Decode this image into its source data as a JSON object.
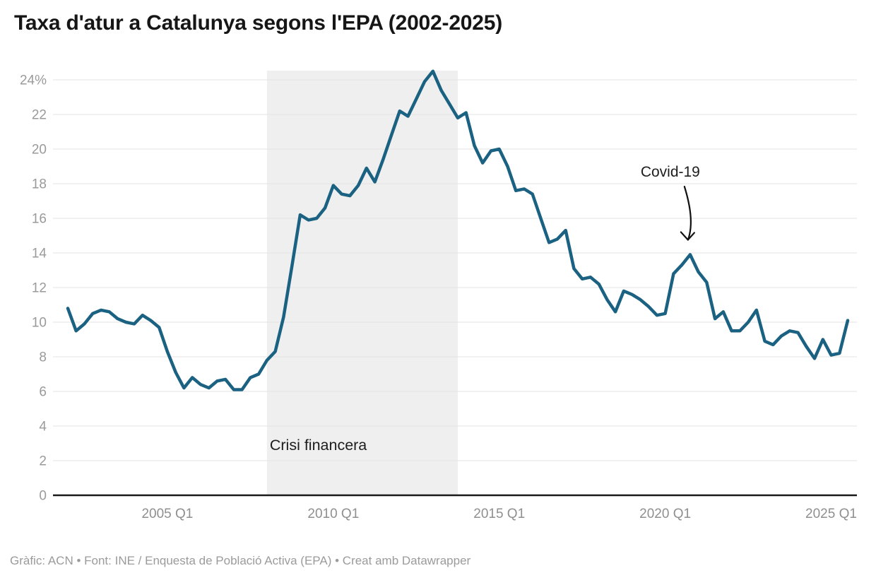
{
  "header": {
    "title": "Taxa d'atur a Catalunya segons l'EPA (2002-2025)"
  },
  "footer": {
    "credits": "Gràfic: ACN • Font: INE / Enquesta de Població Activa (EPA) • Creat amb Datawrapper"
  },
  "chart_data": {
    "type": "line",
    "title": "Taxa d'atur a Catalunya segons l'EPA (2002-2025)",
    "series_name": "Taxa d'atur (%)",
    "unit": "%",
    "xlabel": "",
    "ylabel": "",
    "ylim": [
      0,
      24.6
    ],
    "grid": "horizontal",
    "legend": "none",
    "x": [
      "2002 Q1",
      "2002 Q2",
      "2002 Q3",
      "2002 Q4",
      "2003 Q1",
      "2003 Q2",
      "2003 Q3",
      "2003 Q4",
      "2004 Q1",
      "2004 Q2",
      "2004 Q3",
      "2004 Q4",
      "2005 Q1",
      "2005 Q2",
      "2005 Q3",
      "2005 Q4",
      "2006 Q1",
      "2006 Q2",
      "2006 Q3",
      "2006 Q4",
      "2007 Q1",
      "2007 Q2",
      "2007 Q3",
      "2007 Q4",
      "2008 Q1",
      "2008 Q2",
      "2008 Q3",
      "2008 Q4",
      "2009 Q1",
      "2009 Q2",
      "2009 Q3",
      "2009 Q4",
      "2010 Q1",
      "2010 Q2",
      "2010 Q3",
      "2010 Q4",
      "2011 Q1",
      "2011 Q2",
      "2011 Q3",
      "2011 Q4",
      "2012 Q1",
      "2012 Q2",
      "2012 Q3",
      "2012 Q4",
      "2013 Q1",
      "2013 Q2",
      "2013 Q3",
      "2013 Q4",
      "2014 Q1",
      "2014 Q2",
      "2014 Q3",
      "2014 Q4",
      "2015 Q1",
      "2015 Q2",
      "2015 Q3",
      "2015 Q4",
      "2016 Q1",
      "2016 Q2",
      "2016 Q3",
      "2016 Q4",
      "2017 Q1",
      "2017 Q2",
      "2017 Q3",
      "2017 Q4",
      "2018 Q1",
      "2018 Q2",
      "2018 Q3",
      "2018 Q4",
      "2019 Q1",
      "2019 Q2",
      "2019 Q3",
      "2019 Q4",
      "2020 Q1",
      "2020 Q2",
      "2020 Q3",
      "2020 Q4",
      "2021 Q1",
      "2021 Q2",
      "2021 Q3",
      "2021 Q4",
      "2022 Q1",
      "2022 Q2",
      "2022 Q3",
      "2022 Q4",
      "2023 Q1",
      "2023 Q2",
      "2023 Q3",
      "2023 Q4",
      "2024 Q1",
      "2024 Q2",
      "2024 Q3",
      "2024 Q4",
      "2025 Q1",
      "2025 Q2",
      "2025 Q3"
    ],
    "values": [
      10.8,
      9.5,
      9.9,
      10.5,
      10.7,
      10.6,
      10.2,
      10.0,
      9.9,
      10.4,
      10.1,
      9.7,
      8.3,
      7.1,
      6.2,
      6.8,
      6.4,
      6.2,
      6.6,
      6.7,
      6.1,
      6.1,
      6.8,
      7.0,
      7.8,
      8.3,
      10.3,
      13.2,
      16.2,
      15.9,
      16.0,
      16.6,
      17.9,
      17.4,
      17.3,
      17.9,
      18.9,
      18.1,
      19.4,
      20.8,
      22.2,
      21.9,
      22.9,
      23.9,
      24.5,
      23.4,
      22.6,
      21.8,
      22.1,
      20.2,
      19.2,
      19.9,
      20.0,
      19.0,
      17.6,
      17.7,
      17.4,
      16.0,
      14.6,
      14.8,
      15.3,
      13.1,
      12.5,
      12.6,
      12.2,
      11.3,
      10.6,
      11.8,
      11.6,
      11.3,
      10.9,
      10.4,
      10.5,
      12.8,
      13.3,
      13.9,
      12.9,
      12.3,
      10.2,
      10.6,
      9.5,
      9.5,
      10.0,
      10.7,
      8.9,
      8.7,
      9.2,
      9.5,
      9.4,
      8.6,
      7.9,
      9.0,
      8.1,
      8.2,
      10.1
    ],
    "y_ticks": [
      {
        "value": 0,
        "label": "0"
      },
      {
        "value": 2,
        "label": "2"
      },
      {
        "value": 4,
        "label": "4"
      },
      {
        "value": 6,
        "label": "6"
      },
      {
        "value": 8,
        "label": "8"
      },
      {
        "value": 10,
        "label": "10"
      },
      {
        "value": 12,
        "label": "12"
      },
      {
        "value": 14,
        "label": "14"
      },
      {
        "value": 16,
        "label": "16"
      },
      {
        "value": 18,
        "label": "18"
      },
      {
        "value": 20,
        "label": "20"
      },
      {
        "value": 22,
        "label": "22"
      },
      {
        "value": 24,
        "label": "24%"
      }
    ],
    "x_tick_labels": [
      {
        "label": "2005 Q1",
        "index": 12
      },
      {
        "label": "2010 Q1",
        "index": 32
      },
      {
        "label": "2015 Q1",
        "index": 52
      },
      {
        "label": "2020 Q1",
        "index": 72
      },
      {
        "label": "2025 Q1",
        "index": 92
      }
    ],
    "annotations": {
      "band": {
        "label": "Crisi financera",
        "from": "2008 Q1",
        "to": "2013 Q4",
        "from_index": 24,
        "to_index": 47
      },
      "covid": {
        "label": "Covid-19",
        "peak_quarter": "2020 Q4",
        "peak_value": 13.9,
        "peak_index": 75
      }
    },
    "colors": {
      "line": "#1b6282",
      "grid": "#e3e3e3",
      "axis": "#191919",
      "band": "#efefef",
      "y_tick_label": "#9a9a9a",
      "x_tick_label": "#8f8f8f",
      "annotation_text": "#1d1d1d",
      "arrow": "#111111",
      "title": "#161616",
      "credits": "#9b9b9b"
    }
  }
}
